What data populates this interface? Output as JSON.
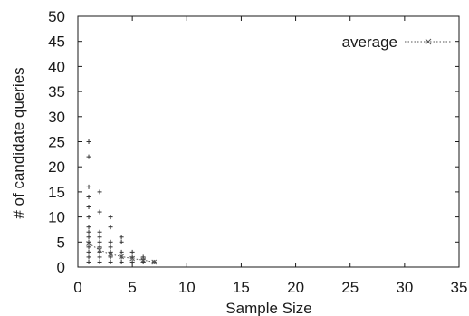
{
  "chart_data": {
    "type": "scatter",
    "title": "",
    "xlabel": "Sample Size",
    "ylabel": "# of candidate queries",
    "xlim": [
      0,
      35
    ],
    "ylim": [
      0,
      50
    ],
    "xticks": [
      "0",
      "5",
      "10",
      "15",
      "20",
      "25",
      "30",
      "35"
    ],
    "yticks": [
      "0",
      "5",
      "10",
      "15",
      "20",
      "25",
      "30",
      "35",
      "40",
      "45",
      "50"
    ],
    "grid": false,
    "legend": {
      "position": "top-right",
      "entries": [
        "average"
      ]
    },
    "colors": {
      "axis": "#1a1a1a",
      "points": "#333333",
      "average": "#555555"
    },
    "series": [
      {
        "name": "",
        "marker": "plus",
        "points": [
          {
            "x": 1,
            "y": 25
          },
          {
            "x": 1,
            "y": 22
          },
          {
            "x": 1,
            "y": 16
          },
          {
            "x": 1,
            "y": 14
          },
          {
            "x": 1,
            "y": 12
          },
          {
            "x": 1,
            "y": 10
          },
          {
            "x": 1,
            "y": 8
          },
          {
            "x": 1,
            "y": 7
          },
          {
            "x": 1,
            "y": 6
          },
          {
            "x": 1,
            "y": 5
          },
          {
            "x": 1,
            "y": 4
          },
          {
            "x": 1,
            "y": 3
          },
          {
            "x": 1,
            "y": 2
          },
          {
            "x": 1,
            "y": 1
          },
          {
            "x": 2,
            "y": 15
          },
          {
            "x": 2,
            "y": 11
          },
          {
            "x": 2,
            "y": 7
          },
          {
            "x": 2,
            "y": 6
          },
          {
            "x": 2,
            "y": 5
          },
          {
            "x": 2,
            "y": 4
          },
          {
            "x": 2,
            "y": 3
          },
          {
            "x": 2,
            "y": 2
          },
          {
            "x": 2,
            "y": 1
          },
          {
            "x": 3,
            "y": 10
          },
          {
            "x": 3,
            "y": 8
          },
          {
            "x": 3,
            "y": 5
          },
          {
            "x": 3,
            "y": 4
          },
          {
            "x": 3,
            "y": 3
          },
          {
            "x": 3,
            "y": 2
          },
          {
            "x": 3,
            "y": 1
          },
          {
            "x": 4,
            "y": 6
          },
          {
            "x": 4,
            "y": 5
          },
          {
            "x": 4,
            "y": 3
          },
          {
            "x": 4,
            "y": 2
          },
          {
            "x": 4,
            "y": 1
          },
          {
            "x": 5,
            "y": 3
          },
          {
            "x": 5,
            "y": 2
          },
          {
            "x": 5,
            "y": 1
          },
          {
            "x": 6,
            "y": 2
          },
          {
            "x": 6,
            "y": 1.5
          },
          {
            "x": 6,
            "y": 1
          },
          {
            "x": 7,
            "y": 1
          }
        ]
      },
      {
        "name": "average",
        "marker": "x",
        "line": "dotted",
        "points": [
          {
            "x": 1,
            "y": 4.7
          },
          {
            "x": 2,
            "y": 3.4
          },
          {
            "x": 3,
            "y": 2.6
          },
          {
            "x": 4,
            "y": 2.1
          },
          {
            "x": 5,
            "y": 1.7
          },
          {
            "x": 6,
            "y": 1.4
          },
          {
            "x": 7,
            "y": 1
          }
        ]
      }
    ]
  }
}
